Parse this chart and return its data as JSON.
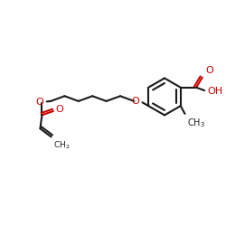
{
  "bg": "#ffffff",
  "bc": "#1a1a1a",
  "oc": "#cc0000",
  "lw": 1.5,
  "fs": 7.0,
  "figsize": [
    2.5,
    2.5
  ],
  "dpi": 100,
  "xlim": [
    0,
    10
  ],
  "ylim": [
    0,
    10
  ]
}
